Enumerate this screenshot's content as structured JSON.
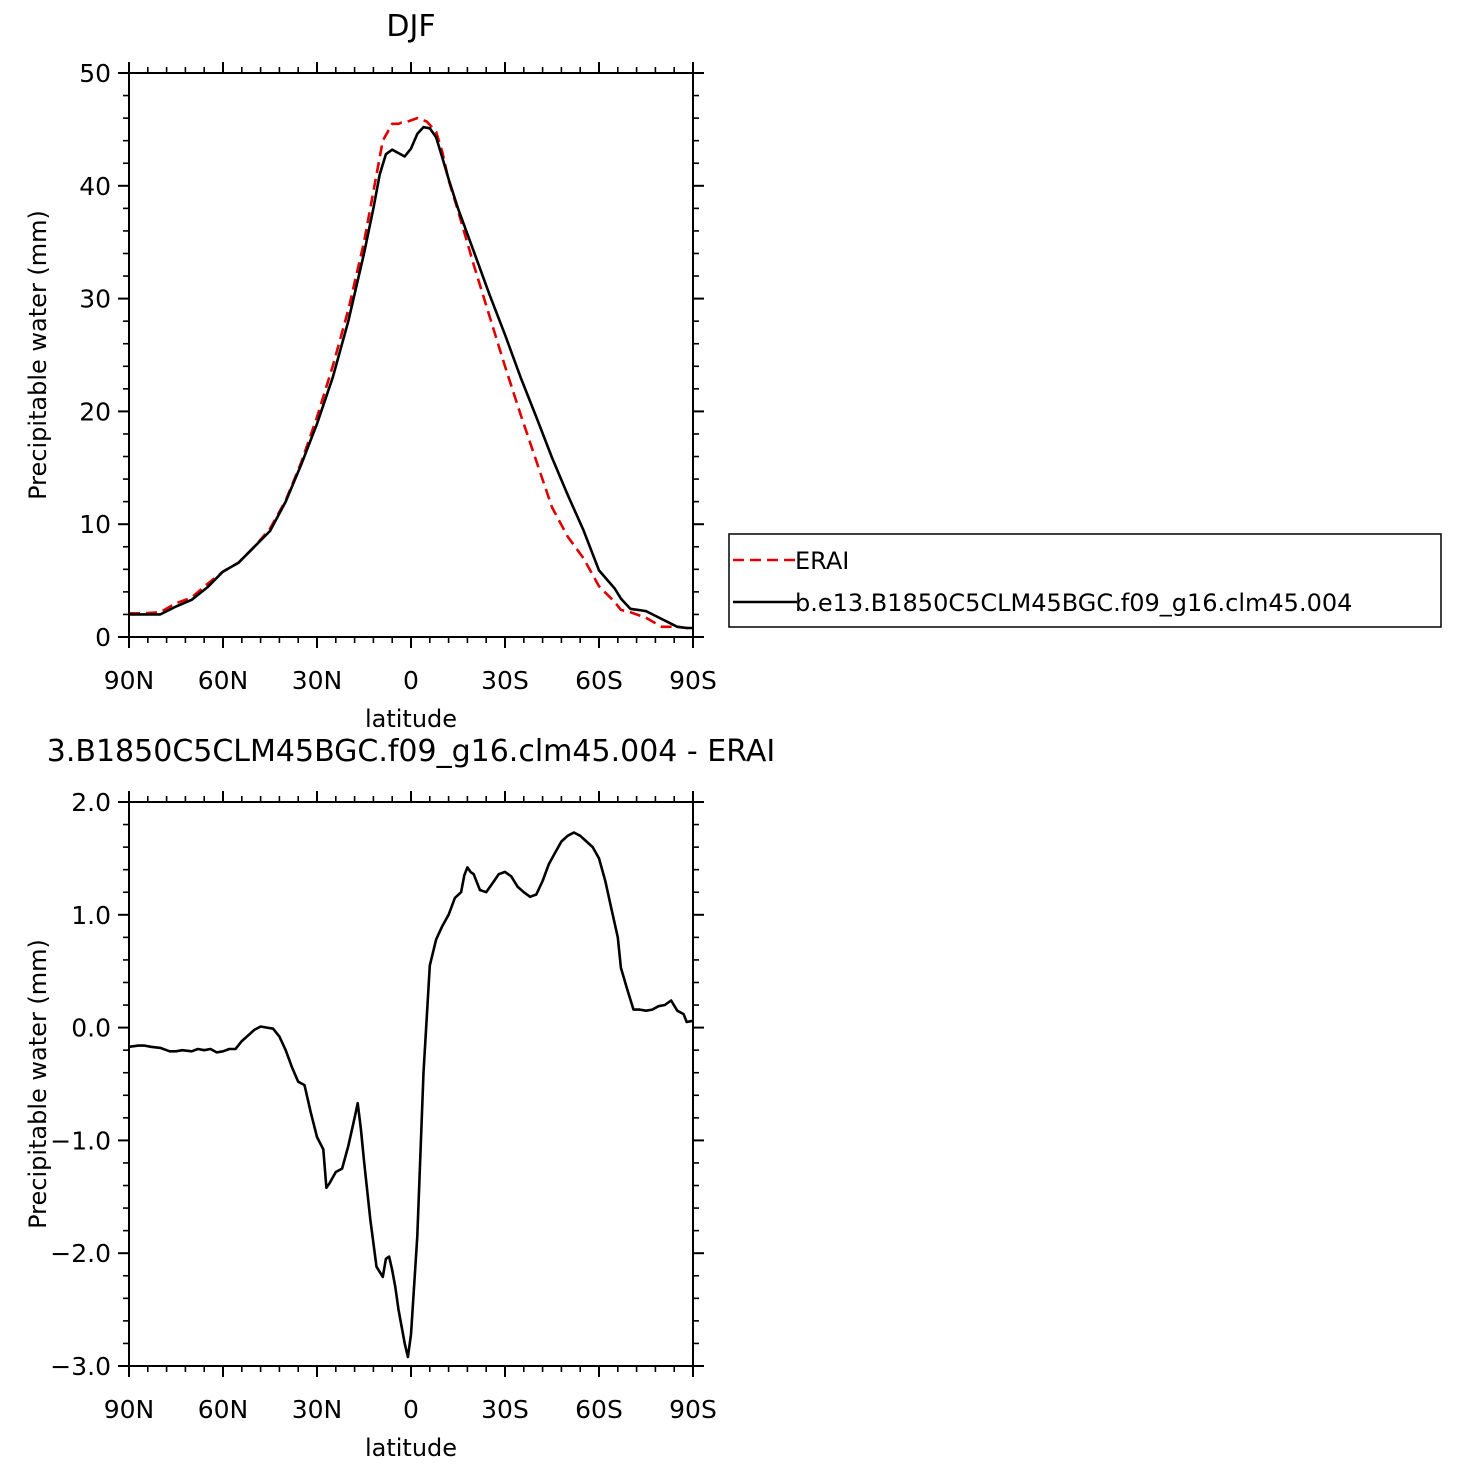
{
  "chart_data": [
    {
      "type": "line",
      "title": "DJF",
      "xlabel": "latitude",
      "ylabel": "Precipitable water (mm)",
      "xlim": [
        90,
        -90
      ],
      "ylim": [
        0,
        50
      ],
      "x_ticks": [
        {
          "value": 90,
          "label": "90N"
        },
        {
          "value": 60,
          "label": "60N"
        },
        {
          "value": 30,
          "label": "30N"
        },
        {
          "value": 0,
          "label": "0"
        },
        {
          "value": -30,
          "label": "30S"
        },
        {
          "value": -60,
          "label": "60S"
        },
        {
          "value": -90,
          "label": "90S"
        }
      ],
      "y_ticks": [
        {
          "value": 0,
          "label": "0"
        },
        {
          "value": 10,
          "label": "10"
        },
        {
          "value": 20,
          "label": "20"
        },
        {
          "value": 30,
          "label": "30"
        },
        {
          "value": 40,
          "label": "40"
        },
        {
          "value": 50,
          "label": "50"
        }
      ],
      "legend": {
        "position": "right"
      },
      "series": [
        {
          "name": "ERAI",
          "color": "#e00000",
          "dash": "dashed",
          "x": [
            90,
            85,
            80,
            75,
            70,
            65,
            60,
            55,
            50,
            45,
            40,
            35,
            30,
            25,
            20,
            15,
            12,
            9,
            6,
            4,
            3,
            2,
            0,
            -2,
            -5,
            -8,
            -10,
            -12,
            -15,
            -20,
            -25,
            -30,
            -35,
            -40,
            -45,
            -50,
            -55,
            -60,
            -65,
            -67,
            -70,
            -75,
            -80,
            -85,
            -88,
            -90
          ],
          "y": [
            2.1,
            2.1,
            2.2,
            3.0,
            3.5,
            4.7,
            5.8,
            6.6,
            8.0,
            9.6,
            12.1,
            15.5,
            19.5,
            24.0,
            29.0,
            35.0,
            39.5,
            44.0,
            45.5,
            45.5,
            45.6,
            45.6,
            45.8,
            46.0,
            45.7,
            44.8,
            43.0,
            40.5,
            37.8,
            33.0,
            28.5,
            24.0,
            19.7,
            15.6,
            11.5,
            8.9,
            7.0,
            4.5,
            3.1,
            2.4,
            2.2,
            1.7,
            0.9,
            0.9,
            0.8,
            0.8
          ]
        },
        {
          "name": "b.e13.B1850C5CLM45BGC.f09_g16.clm45.004",
          "color": "#000000",
          "dash": "solid",
          "x": [
            90,
            85,
            80,
            75,
            70,
            65,
            60,
            55,
            50,
            45,
            40,
            35,
            30,
            25,
            20,
            15,
            12,
            10,
            8,
            6,
            4,
            2,
            0,
            -2,
            -4,
            -6,
            -8,
            -10,
            -12,
            -15,
            -20,
            -25,
            -30,
            -35,
            -40,
            -45,
            -50,
            -55,
            -60,
            -65,
            -67,
            -70,
            -75,
            -80,
            -85,
            -88,
            -90
          ],
          "y": [
            2.0,
            2.0,
            2.0,
            2.7,
            3.3,
            4.4,
            5.8,
            6.6,
            8.0,
            9.4,
            12.0,
            15.3,
            18.9,
            23.0,
            28.0,
            34.0,
            38.0,
            41.0,
            42.8,
            43.2,
            42.9,
            42.6,
            43.3,
            44.6,
            45.2,
            45.1,
            44.3,
            42.5,
            40.6,
            38.0,
            34.2,
            30.4,
            26.8,
            23.0,
            19.5,
            15.9,
            12.6,
            9.5,
            5.9,
            4.3,
            3.4,
            2.5,
            2.3,
            1.6,
            0.9,
            0.8,
            0.8
          ]
        }
      ]
    },
    {
      "type": "line",
      "title": "3.B1850C5CLM45BGC.f09_g16.clm45.004 - ERAI",
      "xlabel": "latitude",
      "ylabel": "Precipitable water (mm)",
      "xlim": [
        90,
        -90
      ],
      "ylim": [
        -3.0,
        2.0
      ],
      "x_ticks": [
        {
          "value": 90,
          "label": "90N"
        },
        {
          "value": 60,
          "label": "60N"
        },
        {
          "value": 30,
          "label": "30N"
        },
        {
          "value": 0,
          "label": "0"
        },
        {
          "value": -30,
          "label": "30S"
        },
        {
          "value": -60,
          "label": "60S"
        },
        {
          "value": -90,
          "label": "90S"
        }
      ],
      "y_ticks": [
        {
          "value": -3,
          "label": "-3.0"
        },
        {
          "value": -2,
          "label": "-2.0"
        },
        {
          "value": -1,
          "label": "-1.0"
        },
        {
          "value": 0,
          "label": "0.0"
        },
        {
          "value": 1,
          "label": "1.0"
        },
        {
          "value": 2,
          "label": "2.0"
        }
      ],
      "series": [
        {
          "color": "#000000",
          "dash": "solid",
          "x": [
            90,
            87,
            85,
            83,
            80,
            77,
            75,
            73,
            70,
            68,
            66,
            64,
            62,
            60,
            58,
            56,
            54,
            52,
            50,
            48,
            46,
            44,
            42,
            40,
            38,
            36,
            34,
            32,
            30,
            28,
            27,
            26,
            24,
            22,
            20,
            18,
            17,
            16,
            15,
            13,
            11,
            9,
            8,
            7,
            6,
            5,
            4,
            3,
            2,
            1,
            0,
            -2,
            -4,
            -6,
            -8,
            -10,
            -12,
            -14,
            -16,
            -17,
            -18,
            -19,
            -20,
            -22,
            -24,
            -26,
            -28,
            -30,
            -32,
            -34,
            -36,
            -38,
            -40,
            -42,
            -44,
            -46,
            -48,
            -50,
            -52,
            -54,
            -56,
            -58,
            -60,
            -62,
            -64,
            -66,
            -67,
            -69,
            -71,
            -73,
            -75,
            -77,
            -79,
            -81,
            -83,
            -85,
            -87,
            -88,
            -90
          ],
          "y": [
            -0.17,
            -0.16,
            -0.16,
            -0.17,
            -0.18,
            -0.21,
            -0.21,
            -0.2,
            -0.21,
            -0.19,
            -0.2,
            -0.19,
            -0.22,
            -0.21,
            -0.19,
            -0.19,
            -0.12,
            -0.07,
            -0.02,
            0.01,
            0.0,
            -0.01,
            -0.08,
            -0.2,
            -0.35,
            -0.48,
            -0.51,
            -0.75,
            -0.97,
            -1.08,
            -1.42,
            -1.38,
            -1.28,
            -1.25,
            -1.05,
            -0.8,
            -0.67,
            -0.9,
            -1.18,
            -1.7,
            -2.12,
            -2.21,
            -2.05,
            -2.03,
            -2.15,
            -2.3,
            -2.5,
            -2.65,
            -2.8,
            -2.92,
            -2.72,
            -1.85,
            -0.4,
            0.55,
            0.78,
            0.9,
            1.0,
            1.15,
            1.2,
            1.35,
            1.42,
            1.38,
            1.36,
            1.22,
            1.2,
            1.28,
            1.36,
            1.38,
            1.34,
            1.25,
            1.2,
            1.16,
            1.18,
            1.3,
            1.45,
            1.55,
            1.65,
            1.7,
            1.73,
            1.7,
            1.65,
            1.6,
            1.5,
            1.3,
            1.05,
            0.8,
            0.53,
            0.34,
            0.16,
            0.16,
            0.15,
            0.16,
            0.19,
            0.2,
            0.24,
            0.15,
            0.12,
            0.05,
            0.06
          ]
        }
      ]
    }
  ]
}
